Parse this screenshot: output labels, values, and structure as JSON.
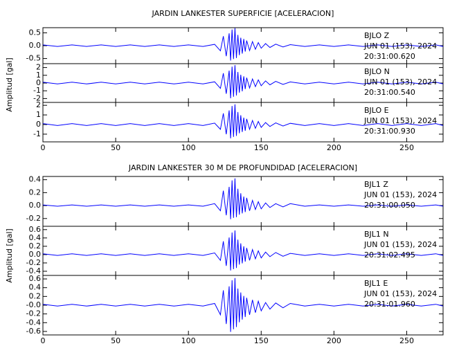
{
  "chart_data": [
    {
      "type": "line",
      "title": "JARDIN LANKESTER SUPERFICIE [ACELERACION]",
      "ylabel": "Amplitud [gal]",
      "xlim": [
        0,
        275
      ],
      "xticks": [
        0,
        50,
        100,
        150,
        200,
        250
      ],
      "x": [
        0,
        10,
        20,
        30,
        40,
        50,
        60,
        70,
        80,
        90,
        100,
        110,
        118,
        122,
        124,
        126,
        128,
        129,
        130,
        131,
        132,
        133,
        134,
        135,
        136,
        137,
        138,
        139,
        140,
        142,
        144,
        146,
        148,
        150,
        153,
        156,
        160,
        165,
        170,
        180,
        190,
        200,
        210,
        220,
        230,
        240,
        250,
        260,
        270,
        275
      ],
      "subplots": [
        {
          "labels": [
            "BJLO  Z",
            "JUN 01 (153), 2024",
            "20:31:00.620"
          ],
          "color": "#0000ff",
          "ylim": [
            -0.7,
            0.7
          ],
          "yticks": [
            0.5,
            {
              "value": 0,
              "label": "0.0"
            },
            -0.5
          ],
          "values": [
            0.03,
            -0.03,
            0.03,
            -0.03,
            0.03,
            -0.03,
            0.03,
            -0.03,
            0.03,
            -0.03,
            0.03,
            -0.03,
            0.05,
            -0.2,
            0.37,
            -0.41,
            0.48,
            -0.58,
            0.63,
            -0.52,
            0.68,
            -0.48,
            0.42,
            -0.37,
            0.31,
            -0.31,
            0.26,
            -0.23,
            0.2,
            -0.19,
            0.16,
            -0.14,
            0.12,
            -0.1,
            0.08,
            -0.07,
            0.06,
            -0.05,
            0.04,
            -0.03,
            0.03,
            -0.03,
            0.03,
            -0.03,
            0.03,
            -0.03,
            0.03,
            -0.03,
            0.03,
            -0.03
          ]
        },
        {
          "labels": [
            "BJLO  N",
            "JUN 01 (153), 2024",
            "20:31:00.540"
          ],
          "color": "#0000ff",
          "ylim": [
            -2.5,
            2.5
          ],
          "yticks": [
            2,
            1,
            0,
            -1,
            -2
          ],
          "values": [
            0.12,
            -0.12,
            0.12,
            -0.12,
            0.12,
            -0.12,
            0.12,
            -0.12,
            0.12,
            -0.12,
            0.12,
            -0.12,
            0.16,
            -0.69,
            1.27,
            -1.38,
            1.61,
            -1.96,
            2.12,
            -1.77,
            2.3,
            -1.61,
            1.43,
            -1.24,
            1.06,
            -1.06,
            0.87,
            -0.78,
            0.69,
            -0.64,
            0.53,
            -0.46,
            0.41,
            -0.35,
            0.28,
            -0.23,
            0.21,
            -0.18,
            0.14,
            -0.12,
            0.12,
            -0.12,
            0.12,
            -0.12,
            0.12,
            -0.12,
            0.12,
            -0.12,
            0.12,
            -0.12
          ]
        },
        {
          "labels": [
            "BJLO  E",
            "JUN 01 (153), 2024",
            "20:31:00.930"
          ],
          "color": "#0000ff",
          "ylim": [
            -1.8,
            2.3
          ],
          "yticks": [
            2,
            1,
            0,
            -1
          ],
          "values": [
            0.1,
            -0.1,
            0.1,
            -0.1,
            0.1,
            -0.1,
            0.1,
            -0.1,
            0.1,
            -0.1,
            0.1,
            -0.1,
            0.15,
            -0.5,
            1.16,
            -1.01,
            1.47,
            -1.43,
            1.93,
            -1.29,
            2.1,
            -1.18,
            1.3,
            -0.91,
            0.97,
            -0.77,
            0.71,
            -0.64,
            0.59,
            -0.5,
            0.42,
            -0.39,
            0.32,
            -0.3,
            0.21,
            -0.2,
            0.17,
            -0.15,
            0.13,
            -0.1,
            0.1,
            -0.1,
            0.1,
            -0.1,
            0.1,
            -0.1,
            0.1,
            -0.1,
            0.1,
            -0.1
          ]
        }
      ]
    },
    {
      "type": "line",
      "title": "JARDIN LANKESTER 30 M DE PROFUNDIDAD [ACELERACION]",
      "ylabel": "Amplitud [gal]",
      "xlim": [
        0,
        275
      ],
      "xticks": [
        0,
        50,
        100,
        150,
        200,
        250
      ],
      "x": [
        0,
        10,
        20,
        30,
        40,
        50,
        60,
        70,
        80,
        90,
        100,
        110,
        118,
        122,
        124,
        126,
        128,
        129,
        130,
        131,
        132,
        133,
        134,
        135,
        136,
        137,
        138,
        139,
        140,
        142,
        144,
        146,
        148,
        150,
        153,
        156,
        160,
        165,
        170,
        180,
        190,
        200,
        210,
        220,
        230,
        240,
        250,
        260,
        270,
        275
      ],
      "subplots": [
        {
          "labels": [
            "BJL1  Z",
            "JUN 01 (153), 2024",
            "20:31:00.050"
          ],
          "color": "#0000ff",
          "ylim": [
            -0.32,
            0.45
          ],
          "yticks": [
            0.4,
            0.2,
            {
              "value": 0,
              "label": "0.0"
            },
            -0.2
          ],
          "values": [
            0.01,
            -0.01,
            0.01,
            -0.01,
            0.01,
            -0.01,
            0.01,
            -0.01,
            0.01,
            -0.01,
            0.01,
            -0.01,
            0.03,
            -0.08,
            0.23,
            -0.15,
            0.29,
            -0.21,
            0.39,
            -0.19,
            0.42,
            -0.18,
            0.26,
            -0.14,
            0.19,
            -0.12,
            0.14,
            -0.1,
            0.12,
            -0.08,
            0.08,
            -0.06,
            0.06,
            -0.05,
            0.04,
            -0.03,
            0.03,
            -0.02,
            0.03,
            -0.01,
            0.01,
            -0.01,
            0.01,
            -0.01,
            0.01,
            -0.01,
            0.01,
            -0.01,
            0.01,
            -0.01
          ]
        },
        {
          "labels": [
            "BJL1  N",
            "JUN 01 (153), 2024",
            "20:31:02.495"
          ],
          "color": "#0000ff",
          "ylim": [
            -0.5,
            0.68
          ],
          "yticks": [
            0.6,
            0.4,
            0.2,
            {
              "value": 0,
              "label": "0.0"
            },
            -0.2,
            -0.4
          ],
          "values": [
            0.02,
            -0.02,
            0.02,
            -0.02,
            0.02,
            -0.02,
            0.02,
            -0.02,
            0.02,
            -0.02,
            0.02,
            -0.02,
            0.04,
            -0.14,
            0.32,
            -0.27,
            0.41,
            -0.38,
            0.53,
            -0.35,
            0.58,
            -0.32,
            0.36,
            -0.24,
            0.27,
            -0.21,
            0.2,
            -0.17,
            0.16,
            -0.14,
            0.12,
            -0.1,
            0.09,
            -0.08,
            0.06,
            -0.05,
            0.05,
            -0.04,
            0.03,
            -0.02,
            0.02,
            -0.02,
            0.02,
            -0.02,
            0.02,
            -0.02,
            0.02,
            -0.02,
            0.02,
            -0.02
          ]
        },
        {
          "labels": [
            "BJL1  E",
            "JUN 01 (153), 2024",
            "20:31:01.960"
          ],
          "color": "#0000ff",
          "ylim": [
            -0.68,
            0.68
          ],
          "yticks": [
            0.6,
            0.4,
            0.2,
            {
              "value": 0,
              "label": "-0.0"
            },
            -0.2,
            -0.4,
            -0.6
          ],
          "values": [
            0.02,
            -0.02,
            0.02,
            -0.02,
            0.02,
            -0.02,
            0.02,
            -0.02,
            0.02,
            -0.02,
            0.02,
            -0.02,
            0.04,
            -0.22,
            0.34,
            -0.43,
            0.43,
            -0.61,
            0.57,
            -0.55,
            0.62,
            -0.5,
            0.38,
            -0.39,
            0.29,
            -0.33,
            0.21,
            -0.27,
            0.17,
            -0.22,
            0.12,
            -0.17,
            0.09,
            -0.13,
            0.06,
            -0.09,
            0.05,
            -0.06,
            0.04,
            -0.02,
            0.02,
            -0.02,
            0.02,
            -0.02,
            0.02,
            -0.02,
            0.02,
            -0.02,
            0.02,
            -0.02
          ]
        }
      ]
    }
  ]
}
